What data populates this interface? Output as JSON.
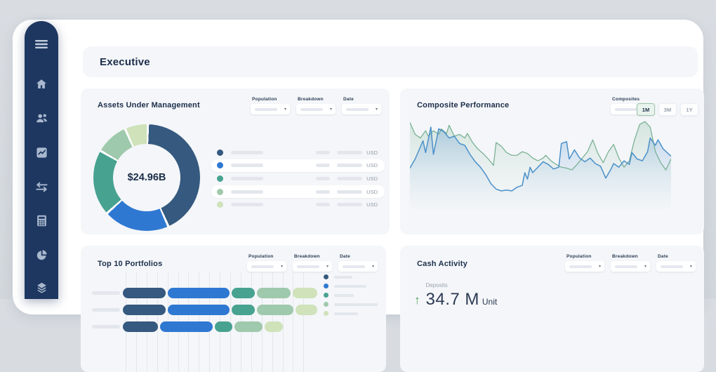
{
  "header": {
    "title": "Executive"
  },
  "sidebar": {
    "icons": [
      "menu",
      "home",
      "clients",
      "performance",
      "transactions",
      "calculator",
      "allocation",
      "holdings"
    ]
  },
  "cards": {
    "aum": {
      "title": "Assets Under Management",
      "filters": [
        "Population",
        "Breakdown",
        "Date"
      ],
      "center_label": "$24.96B",
      "currency_label": "USD",
      "legend_row_count": 5
    },
    "composite": {
      "title": "Composite Performance",
      "filter_label": "Composites",
      "range_buttons": [
        "1M",
        "3M",
        "1Y"
      ],
      "selected_range": "1M"
    },
    "top10": {
      "title": "Top 10 Portfolios",
      "filters": [
        "Population",
        "Breakdown",
        "Date"
      ]
    },
    "cash": {
      "title": "Cash Activity",
      "filters": [
        "Population",
        "Breakdown",
        "Date"
      ],
      "metric": {
        "label": "Deposits",
        "value": "34.7 M",
        "unit": "Unit",
        "direction": "up"
      }
    }
  },
  "colors": {
    "navy": "#35597f",
    "blue": "#2e78d2",
    "teal": "#47a290",
    "sage": "#9fc9ac",
    "pale": "#cfe2ba",
    "sidebar_bg": "#1d3760",
    "sidebar_icon": "#a9b8ce",
    "card_bg": "#f4f6f9",
    "accent_green": "#4c9e57",
    "selected_range_bg": "#e9f3ed",
    "selected_range_border": "#9dc4a8"
  },
  "chart_data": [
    {
      "type": "pie",
      "donut": true,
      "title": "Assets Under Management",
      "center_label": "$24.96B",
      "values": [
        43,
        20,
        20,
        10,
        7
      ],
      "colors": [
        "#35597f",
        "#2e78d2",
        "#47a290",
        "#9fc9ac",
        "#cfe2ba"
      ],
      "unit": "percent",
      "legend": "right, 5 redacted rows each ending in USD"
    },
    {
      "type": "area",
      "title": "Composite Performance",
      "xlim": [
        0,
        100
      ],
      "ylim": [
        0,
        100
      ],
      "grid": false,
      "series": [
        {
          "name": "composite-green",
          "color": "#74ad8f",
          "points": [
            [
              0,
              5
            ],
            [
              2,
              18
            ],
            [
              4,
              22
            ],
            [
              6,
              14
            ],
            [
              7,
              20
            ],
            [
              9,
              14
            ],
            [
              11,
              18
            ],
            [
              12,
              12
            ],
            [
              14,
              17
            ],
            [
              15,
              8
            ],
            [
              17,
              20
            ],
            [
              19,
              18
            ],
            [
              21,
              22
            ],
            [
              22,
              17
            ],
            [
              24,
              27
            ],
            [
              26,
              34
            ],
            [
              28,
              39
            ],
            [
              30,
              45
            ],
            [
              32,
              52
            ],
            [
              33,
              27
            ],
            [
              35,
              31
            ],
            [
              37,
              38
            ],
            [
              39,
              41
            ],
            [
              41,
              41
            ],
            [
              43,
              37
            ],
            [
              45,
              39
            ],
            [
              47,
              44
            ],
            [
              49,
              47
            ],
            [
              51,
              44
            ],
            [
              52,
              41
            ],
            [
              54,
              47
            ],
            [
              56,
              51
            ],
            [
              58,
              54
            ],
            [
              60,
              55
            ],
            [
              62,
              57
            ],
            [
              64,
              51
            ],
            [
              66,
              44
            ],
            [
              68,
              37
            ],
            [
              70,
              24
            ],
            [
              72,
              39
            ],
            [
              74,
              49
            ],
            [
              76,
              37
            ],
            [
              78,
              29
            ],
            [
              80,
              44
            ],
            [
              82,
              54
            ],
            [
              84,
              47
            ],
            [
              86,
              24
            ],
            [
              88,
              7
            ],
            [
              90,
              4
            ],
            [
              92,
              10
            ],
            [
              94,
              37
            ],
            [
              96,
              49
            ],
            [
              98,
              57
            ],
            [
              100,
              45
            ]
          ]
        },
        {
          "name": "composite-blue",
          "color": "#4a90c9",
          "points": [
            [
              0,
              55
            ],
            [
              2,
              45
            ],
            [
              5,
              25
            ],
            [
              6,
              38
            ],
            [
              8,
              10
            ],
            [
              9,
              40
            ],
            [
              11,
              12
            ],
            [
              13,
              15
            ],
            [
              15,
              22
            ],
            [
              17,
              20
            ],
            [
              19,
              28
            ],
            [
              21,
              30
            ],
            [
              23,
              40
            ],
            [
              25,
              48
            ],
            [
              27,
              54
            ],
            [
              29,
              62
            ],
            [
              31,
              72
            ],
            [
              33,
              78
            ],
            [
              35,
              80
            ],
            [
              37,
              79
            ],
            [
              39,
              80
            ],
            [
              41,
              76
            ],
            [
              43,
              74
            ],
            [
              44,
              60
            ],
            [
              45,
              67
            ],
            [
              46,
              54
            ],
            [
              47,
              60
            ],
            [
              49,
              54
            ],
            [
              51,
              48
            ],
            [
              53,
              51
            ],
            [
              55,
              56
            ],
            [
              57,
              54
            ],
            [
              58,
              28
            ],
            [
              60,
              26
            ],
            [
              61,
              45
            ],
            [
              63,
              35
            ],
            [
              65,
              44
            ],
            [
              67,
              48
            ],
            [
              69,
              44
            ],
            [
              71,
              50
            ],
            [
              73,
              53
            ],
            [
              75,
              66
            ],
            [
              77,
              56
            ],
            [
              78,
              50
            ],
            [
              80,
              54
            ],
            [
              82,
              47
            ],
            [
              84,
              51
            ],
            [
              85,
              38
            ],
            [
              87,
              45
            ],
            [
              89,
              47
            ],
            [
              91,
              37
            ],
            [
              92,
              22
            ],
            [
              94,
              30
            ],
            [
              95,
              24
            ],
            [
              97,
              34
            ],
            [
              100,
              42
            ]
          ]
        }
      ]
    },
    {
      "type": "bar",
      "orientation": "horizontal",
      "stacked": true,
      "title": "Top 10 Portfolios",
      "colors": [
        "#35597f",
        "#2e78d2",
        "#47a290",
        "#9fc9ac",
        "#cfe2ba"
      ],
      "rows": [
        {
          "segments": [
            61,
            88,
            33,
            48,
            35
          ]
        },
        {
          "segments": [
            61,
            88,
            33,
            52,
            31
          ]
        },
        {
          "segments": [
            50,
            75,
            25,
            40,
            26
          ]
        }
      ],
      "legend_bar_widths": [
        26,
        46,
        28,
        62,
        34
      ],
      "note": "labels redacted as grey bars"
    }
  ]
}
